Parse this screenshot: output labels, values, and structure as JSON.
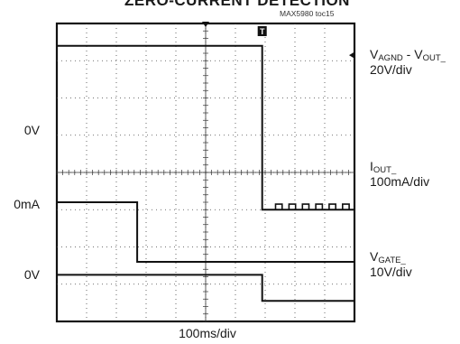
{
  "header": {
    "title": "ZERO-CURRENT DETECTION",
    "toc_id": "MAX5980 toc15"
  },
  "chart_data": {
    "type": "line",
    "title": "ZERO-CURRENT DETECTION",
    "xlabel": "100ms/div",
    "grid": true,
    "x_divisions": 10,
    "y_divisions": 8,
    "trigger_marker": "T",
    "series": [
      {
        "name": "VAGND - VOUT_",
        "scale": "20V/div",
        "zero_label": "",
        "color": "#111111",
        "sub": "AGND",
        "main": "V",
        "rest": " - V",
        "sub2": "OUT_",
        "points": [
          [
            0,
            7.4
          ],
          [
            6.9,
            7.4
          ],
          [
            6.9,
            3.0
          ],
          [
            10,
            3.0
          ]
        ],
        "ripple_after": 7.0
      },
      {
        "name": "IOUT_",
        "scale": "100mA/div",
        "zero_label": "0mA",
        "color": "#111111",
        "points": [
          [
            0,
            3.2
          ],
          [
            2.7,
            3.2
          ],
          [
            2.7,
            1.6
          ],
          [
            10,
            1.6
          ]
        ]
      },
      {
        "name": "VGATE_",
        "scale": "10V/div",
        "zero_label": "0V",
        "color": "#111111",
        "points": [
          [
            0,
            1.25
          ],
          [
            6.9,
            1.25
          ],
          [
            6.9,
            0.55
          ],
          [
            10,
            0.55
          ]
        ]
      }
    ],
    "left_labels": [
      "0V",
      "0mA",
      "0V"
    ],
    "right_labels": [
      {
        "line1_main": "V",
        "line1_sub": "AGND",
        "line1_mid": " - V",
        "line1_sub2": "OUT_",
        "line2": "20V/div"
      },
      {
        "line1_main": "I",
        "line1_sub": "OUT_",
        "line1_mid": "",
        "line1_sub2": "",
        "line2": "100mA/div"
      },
      {
        "line1_main": "V",
        "line1_sub": "GATE_",
        "line1_mid": "",
        "line1_sub2": "",
        "line2": "10V/div"
      }
    ]
  }
}
